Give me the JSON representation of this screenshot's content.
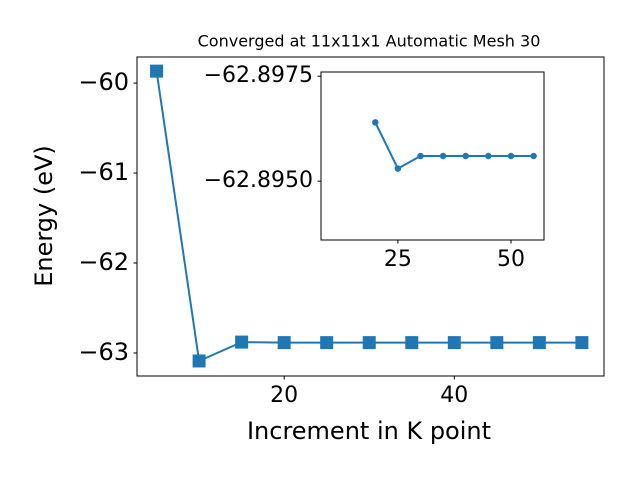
{
  "chart_data": [
    {
      "type": "line",
      "title": "Converged at 11x11x1 Automatic Mesh 30",
      "x_label": "Increment in K point",
      "y_label": "Energy (eV)",
      "x": [
        5,
        10,
        15,
        20,
        25,
        30,
        35,
        40,
        45,
        50,
        55
      ],
      "series": [
        {
          "color": "#1f77b4",
          "marker": "square",
          "values": [
            -59.867,
            -63.089,
            -62.879,
            -62.885,
            -62.885,
            -62.885,
            -62.885,
            -62.885,
            -62.885,
            -62.885,
            -62.885
          ]
        }
      ],
      "xlim": [
        2.7,
        57.6
      ],
      "ylim": [
        -63.256,
        -59.71
      ],
      "xticks": [
        20,
        40
      ],
      "yticks": [
        {
          "value": -63,
          "label": "−63"
        },
        {
          "value": -62,
          "label": "−62"
        },
        {
          "value": -61,
          "label": "−61"
        },
        {
          "value": -60,
          "label": "−60"
        }
      ]
    },
    {
      "type": "line",
      "x": [
        20,
        25,
        30,
        35,
        40,
        45,
        50,
        55
      ],
      "series": [
        {
          "color": "#1f77b4",
          "marker": "circle",
          "values": [
            -62.8964,
            -62.8953,
            -62.8956,
            -62.8956,
            -62.8956,
            -62.8956,
            -62.8956,
            -62.8956
          ]
        }
      ],
      "xlim": [
        8,
        57.3
      ],
      "ylim": [
        -62.8936,
        -62.8976
      ],
      "xticks": [
        25,
        50
      ],
      "yticks": [
        {
          "value": -62.895,
          "label": "−62.8950"
        },
        {
          "value": -62.8975,
          "label": "−62.8975"
        }
      ]
    }
  ]
}
